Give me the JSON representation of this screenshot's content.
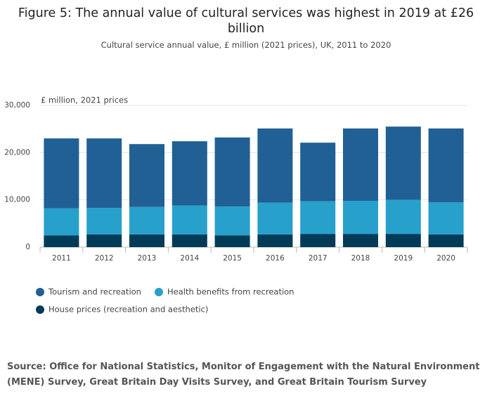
{
  "chart_data": {
    "type": "stacked-bar",
    "title": "Figure 5: The annual value of cultural services was highest in 2019 at £26 billion",
    "subtitle": "Cultural service annual value, £ million (2021 prices), UK, 2011 to 2020",
    "y_label": "£ million, 2021 prices",
    "categories": [
      "2011",
      "2012",
      "2013",
      "2014",
      "2015",
      "2016",
      "2017",
      "2018",
      "2019",
      "2020"
    ],
    "series": [
      {
        "name": "Tourism and recreation",
        "color": "#206095",
        "values": [
          14800,
          14700,
          13300,
          13600,
          14600,
          15700,
          12400,
          15300,
          15500,
          15600
        ]
      },
      {
        "name": "Health benefits from recreation",
        "color": "#27a0cc",
        "values": [
          5700,
          5600,
          5800,
          6100,
          6100,
          6700,
          6900,
          7000,
          7200,
          6800
        ]
      },
      {
        "name": "House prices (recreation and aesthetic)",
        "color": "#003c57",
        "values": [
          2500,
          2700,
          2700,
          2700,
          2500,
          2700,
          2800,
          2800,
          2800,
          2700
        ]
      }
    ],
    "ylim": [
      0,
      30000
    ],
    "yticks": [
      0,
      {
        "value": 10000,
        "label": "10,000"
      },
      {
        "value": 20000,
        "label": "20,000"
      },
      {
        "value": 30000,
        "label": "30,000"
      }
    ],
    "grid": true,
    "source": "Source: Office for National Statistics, Monitor of Engagement with the Natural Environment (MENE) Survey, Great Britain Day Visits Survey, and Great Britain Tourism Survey"
  }
}
